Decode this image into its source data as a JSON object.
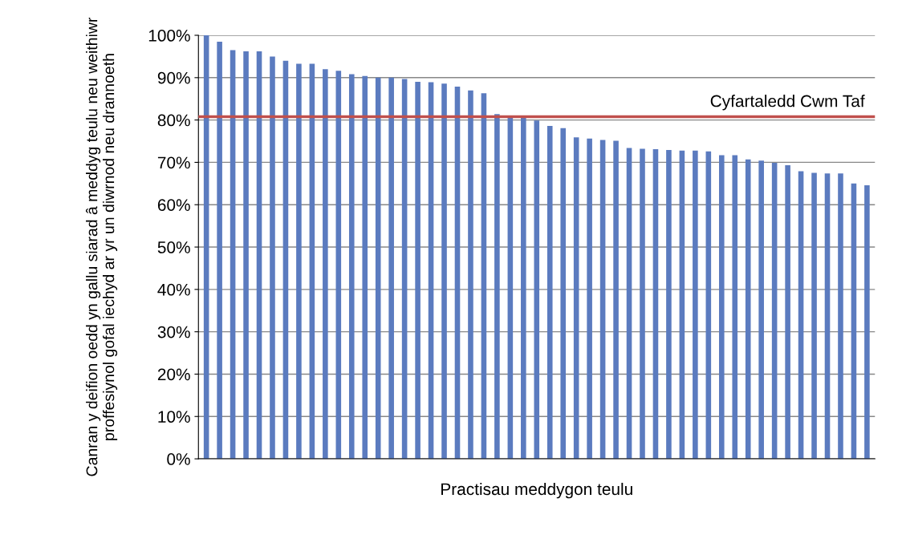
{
  "chart_data": {
    "type": "bar",
    "ylabel": "Canran y deifion oedd yn gallu siarad â meddyg teulu neu weithiwr proffesiynol gofal iechyd ar yr un diwrnod neu drannoeth",
    "xlabel": "Practisau meddygon teulu",
    "categories": [
      null,
      null,
      null,
      null,
      null,
      null,
      null,
      null,
      null,
      null,
      null,
      null,
      null,
      null,
      null,
      null,
      null,
      null,
      null,
      null,
      null,
      null,
      null,
      null,
      null,
      null,
      null,
      null,
      null,
      null,
      null,
      null,
      null,
      null,
      null,
      null,
      null,
      null,
      null,
      null,
      null,
      null,
      null,
      null,
      null,
      null,
      null,
      null,
      null,
      null,
      null
    ],
    "values": [
      100,
      98.5,
      96.5,
      96.2,
      96.2,
      95,
      94,
      93.3,
      93.3,
      92,
      91.6,
      90.8,
      90.4,
      90,
      90,
      89.7,
      89,
      88.9,
      88.6,
      87.9,
      87,
      86.3,
      81.4,
      80.9,
      80.6,
      79.9,
      78.6,
      78.1,
      75.9,
      75.6,
      75.3,
      75.1,
      73.4,
      73.2,
      73.1,
      72.9,
      72.8,
      72.8,
      72.6,
      71.7,
      71.7,
      70.7,
      70.4,
      69.9,
      69.3,
      67.9,
      67.5,
      67.4,
      67.4,
      65,
      64.6
    ],
    "color": "#5b7bbf",
    "ylim": [
      0,
      100
    ],
    "yticks": [
      {
        "value": 0,
        "label": "0%"
      },
      {
        "value": 10,
        "label": "10%"
      },
      {
        "value": 20,
        "label": "20%"
      },
      {
        "value": 30,
        "label": "30%"
      },
      {
        "value": 40,
        "label": "40%"
      },
      {
        "value": 50,
        "label": "50%"
      },
      {
        "value": 60,
        "label": "60%"
      },
      {
        "value": 70,
        "label": "70%"
      },
      {
        "value": 80,
        "label": "80%"
      },
      {
        "value": 90,
        "label": "90%"
      },
      {
        "value": 100,
        "label": "100%"
      }
    ],
    "grid": "y",
    "ref_lines": [
      {
        "axis": "y",
        "value": 80.8,
        "label": "Cyfartaledd Cwm Taf",
        "color": "#c0504d"
      }
    ]
  }
}
